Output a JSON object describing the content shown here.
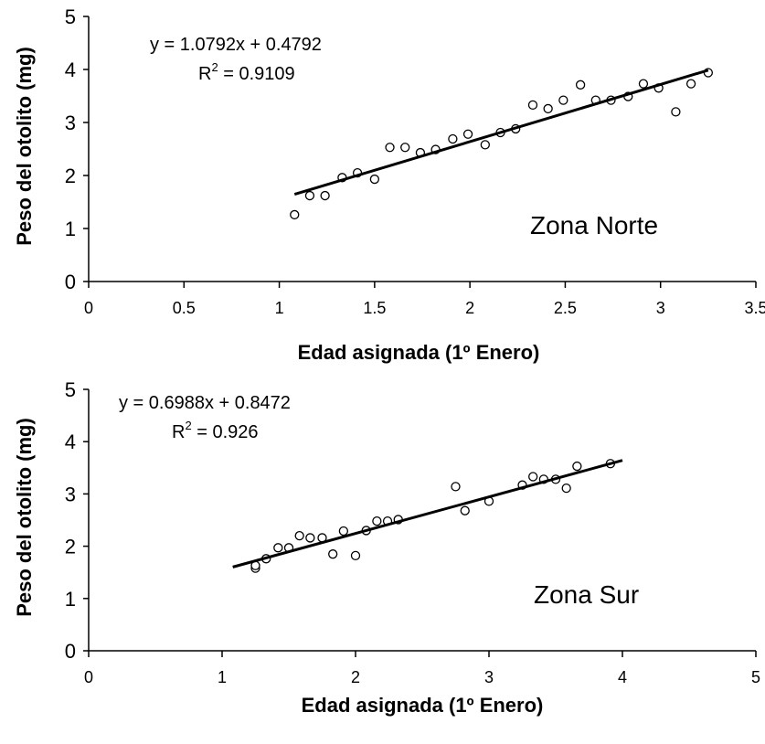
{
  "chart_data": [
    {
      "type": "scatter",
      "title": "",
      "xlabel": "Edad asignada (1º Enero)",
      "ylabel": "Peso del otolito (mg)",
      "xlim": [
        0,
        3.5
      ],
      "ylim": [
        0,
        5
      ],
      "xticks": [
        "0",
        "0.5",
        "1",
        "1.5",
        "2",
        "2.5",
        "3",
        "3.5"
      ],
      "yticks": [
        "0",
        "1",
        "2",
        "3",
        "4",
        "5"
      ],
      "grid": false,
      "zone_label": "Zona Norte",
      "equation": "y = 1.0792x + 0.4792",
      "r2_prefix": "R",
      "r2_sup": "2",
      "r2_value": " = 0.9109",
      "trendline": {
        "slope": 1.0792,
        "intercept": 0.4792,
        "x_start": 1.08,
        "x_end": 3.25
      },
      "points": [
        [
          1.08,
          1.26
        ],
        [
          1.16,
          1.62
        ],
        [
          1.24,
          1.62
        ],
        [
          1.33,
          1.96
        ],
        [
          1.41,
          2.05
        ],
        [
          1.5,
          1.93
        ],
        [
          1.58,
          2.53
        ],
        [
          1.66,
          2.53
        ],
        [
          1.74,
          2.43
        ],
        [
          1.82,
          2.49
        ],
        [
          1.91,
          2.69
        ],
        [
          1.99,
          2.78
        ],
        [
          2.08,
          2.58
        ],
        [
          2.16,
          2.81
        ],
        [
          2.24,
          2.88
        ],
        [
          2.33,
          3.33
        ],
        [
          2.41,
          3.26
        ],
        [
          2.49,
          3.42
        ],
        [
          2.58,
          3.71
        ],
        [
          2.66,
          3.42
        ],
        [
          2.74,
          3.42
        ],
        [
          2.83,
          3.49
        ],
        [
          2.91,
          3.73
        ],
        [
          2.99,
          3.65
        ],
        [
          3.08,
          3.2
        ],
        [
          3.16,
          3.73
        ],
        [
          3.25,
          3.94
        ]
      ]
    },
    {
      "type": "scatter",
      "title": "",
      "xlabel": "Edad asignada (1º Enero)",
      "ylabel": "Peso del otolito (mg)",
      "xlim": [
        0,
        5
      ],
      "ylim": [
        0,
        5
      ],
      "xticks": [
        "0",
        "1",
        "2",
        "3",
        "4",
        "5"
      ],
      "yticks": [
        "0",
        "1",
        "2",
        "3",
        "4",
        "5"
      ],
      "grid": false,
      "zone_label": "Zona Sur",
      "equation": "y = 0.6988x + 0.8472",
      "r2_prefix": "R",
      "r2_sup": "2",
      "r2_value": " = 0.926",
      "trendline": {
        "slope": 0.6988,
        "intercept": 0.8472,
        "x_start": 1.08,
        "x_end": 4.0
      },
      "points": [
        [
          1.25,
          1.58
        ],
        [
          1.25,
          1.63
        ],
        [
          1.33,
          1.76
        ],
        [
          1.42,
          1.97
        ],
        [
          1.5,
          1.97
        ],
        [
          1.58,
          2.2
        ],
        [
          1.66,
          2.16
        ],
        [
          1.75,
          2.16
        ],
        [
          1.83,
          1.85
        ],
        [
          1.91,
          2.29
        ],
        [
          2.0,
          1.82
        ],
        [
          2.08,
          2.3
        ],
        [
          2.16,
          2.48
        ],
        [
          2.24,
          2.48
        ],
        [
          2.32,
          2.51
        ],
        [
          2.75,
          3.14
        ],
        [
          2.82,
          2.68
        ],
        [
          3.0,
          2.86
        ],
        [
          3.25,
          3.17
        ],
        [
          3.33,
          3.33
        ],
        [
          3.41,
          3.28
        ],
        [
          3.5,
          3.28
        ],
        [
          3.58,
          3.11
        ],
        [
          3.66,
          3.53
        ],
        [
          3.91,
          3.58
        ]
      ]
    }
  ]
}
